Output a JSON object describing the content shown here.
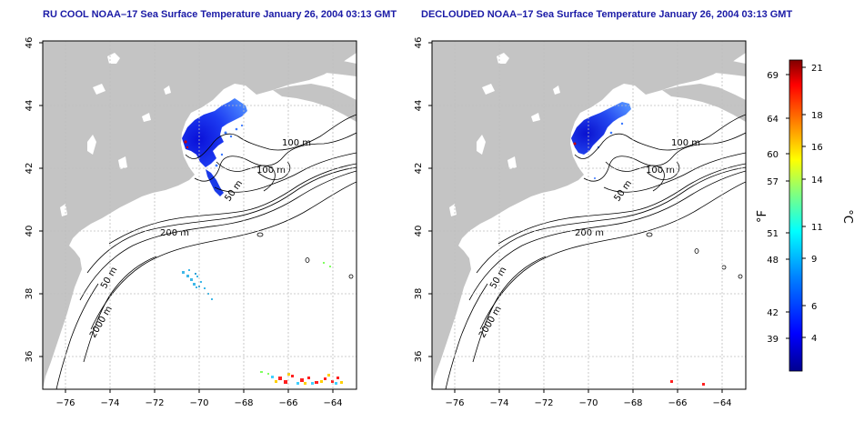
{
  "maps": [
    {
      "title": "RU COOL NOAA–17 Sea Surface Temperature January 26, 2004 03:13 GMT",
      "contours": [
        "100 m",
        "100 m",
        "50 m",
        "200 m",
        "50 m",
        "2000 m"
      ]
    },
    {
      "title": "DECLOUDED NOAA–17 Sea Surface Temperature January 26, 2004 03:13 GMT",
      "contours": [
        "100 m",
        "100 m",
        "50 m",
        "200 m",
        "50 m",
        "2000 m"
      ]
    }
  ],
  "axes": {
    "x_ticks": [
      "−76",
      "−74",
      "−72",
      "−70",
      "−68",
      "−66",
      "−64"
    ],
    "y_ticks": [
      "36",
      "38",
      "40",
      "42",
      "44",
      "46"
    ]
  },
  "colorbar": {
    "f_label": "°F",
    "c_label": "°C",
    "f_ticks": [
      "69",
      "64",
      "60",
      "57",
      "51",
      "48",
      "42",
      "39"
    ],
    "c_ticks": [
      "21",
      "18",
      "16",
      "14",
      "11",
      "9",
      "6",
      "4"
    ]
  },
  "colors": {
    "land": "#c4c4c4",
    "title": "#1a1aa6",
    "grid": "#bdbdbd"
  }
}
